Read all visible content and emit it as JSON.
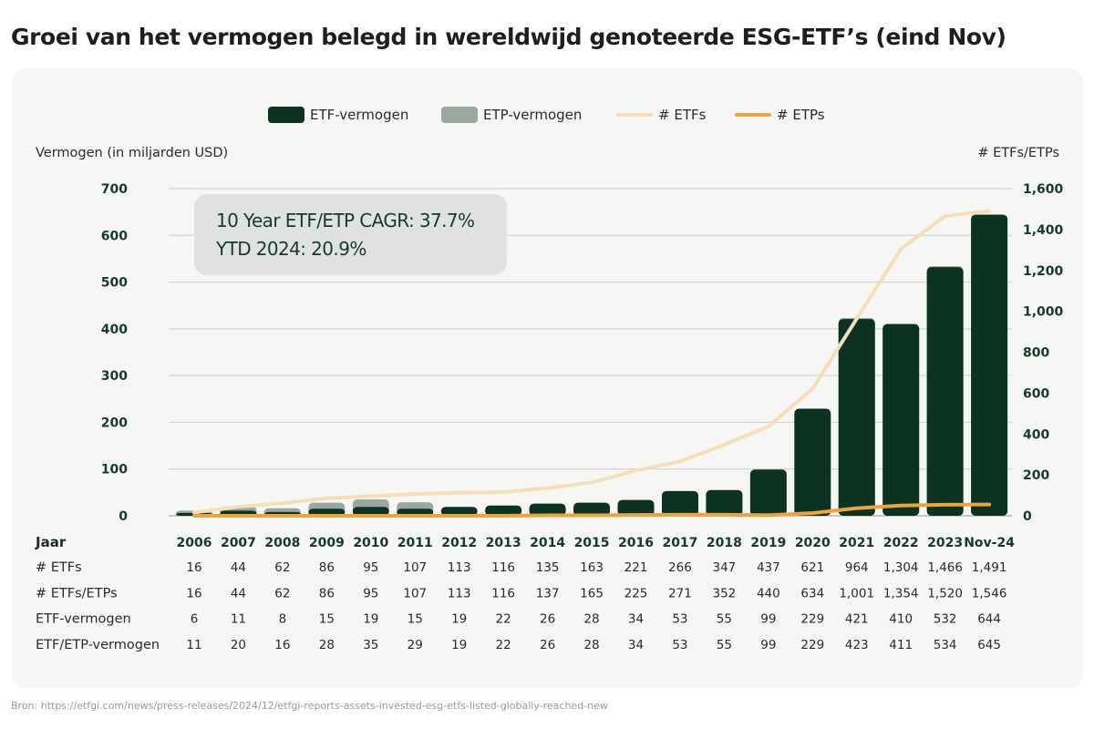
{
  "title": "Groei van het vermogen belegd in wereldwijd genoteerde ESG-ETF’s (eind Nov)",
  "source": "Bron: https://etfgi.com/news/press-releases/2024/12/etfgi-reports-assets-invested-esg-etfs-listed-globally-reached-new",
  "annotation": {
    "line1": "10 Year ETF/ETP CAGR: 37.7%",
    "line2": "YTD 2024: 20.9%"
  },
  "colors": {
    "etf_assets": "#0c3322",
    "etp_assets": "#9aa89f",
    "etf_count": "#f5dfb8",
    "etp_count": "#eea43a"
  },
  "chart_data": {
    "type": "bar+line",
    "categories": [
      "2006",
      "2007",
      "2008",
      "2009",
      "2010",
      "2011",
      "2012",
      "2013",
      "2014",
      "2015",
      "2016",
      "2017",
      "2018",
      "2019",
      "2020",
      "2021",
      "2022",
      "2023",
      "Nov-24"
    ],
    "left_axis": {
      "label": "Vermogen (in miljarden USD)",
      "range": [
        0,
        700
      ],
      "ticks": [
        "0",
        "100",
        "200",
        "300",
        "400",
        "500",
        "600",
        "700"
      ]
    },
    "right_axis": {
      "label": "# ETFs/ETPs",
      "range": [
        0,
        1600
      ],
      "ticks": [
        "0",
        "200",
        "400",
        "600",
        "800",
        "1,000",
        "1,200",
        "1,400",
        "1,600"
      ]
    },
    "grid": true,
    "legend_position": "top",
    "series": [
      {
        "name": "ETF-vermogen",
        "type": "bar",
        "axis": "left",
        "values": [
          6,
          11,
          8,
          15,
          19,
          15,
          19,
          22,
          26,
          28,
          34,
          53,
          55,
          99,
          229,
          421,
          410,
          532,
          644
        ]
      },
      {
        "name": "ETP-vermogen",
        "type": "bar",
        "axis": "left",
        "values": [
          5,
          9,
          8,
          13,
          16,
          14,
          0,
          0,
          0,
          0,
          0,
          0,
          0,
          0,
          0,
          2,
          1,
          2,
          1
        ]
      },
      {
        "name": "# ETFs",
        "type": "line",
        "axis": "right",
        "values": [
          16,
          44,
          62,
          86,
          95,
          107,
          113,
          116,
          135,
          163,
          221,
          266,
          347,
          437,
          621,
          964,
          1304,
          1466,
          1491
        ]
      },
      {
        "name": "# ETPs",
        "type": "line",
        "axis": "right",
        "values": [
          0,
          0,
          0,
          0,
          0,
          0,
          0,
          0,
          2,
          2,
          4,
          5,
          5,
          3,
          13,
          37,
          50,
          54,
          55
        ]
      }
    ]
  },
  "table": {
    "header": "Jaar",
    "rows": [
      {
        "label": "# ETFs",
        "values": [
          "16",
          "44",
          "62",
          "86",
          "95",
          "107",
          "113",
          "116",
          "135",
          "163",
          "221",
          "266",
          "347",
          "437",
          "621",
          "964",
          "1,304",
          "1,466",
          "1,491"
        ]
      },
      {
        "label": "# ETFs/ETPs",
        "values": [
          "16",
          "44",
          "62",
          "86",
          "95",
          "107",
          "113",
          "116",
          "137",
          "165",
          "225",
          "271",
          "352",
          "440",
          "634",
          "1,001",
          "1,354",
          "1,520",
          "1,546"
        ]
      },
      {
        "label": "ETF-vermogen",
        "values": [
          "6",
          "11",
          "8",
          "15",
          "19",
          "15",
          "19",
          "22",
          "26",
          "28",
          "34",
          "53",
          "55",
          "99",
          "229",
          "421",
          "410",
          "532",
          "644"
        ]
      },
      {
        "label": "ETF/ETP-vermogen",
        "values": [
          "11",
          "20",
          "16",
          "28",
          "35",
          "29",
          "19",
          "22",
          "26",
          "28",
          "34",
          "53",
          "55",
          "99",
          "229",
          "423",
          "411",
          "534",
          "645"
        ]
      }
    ]
  }
}
